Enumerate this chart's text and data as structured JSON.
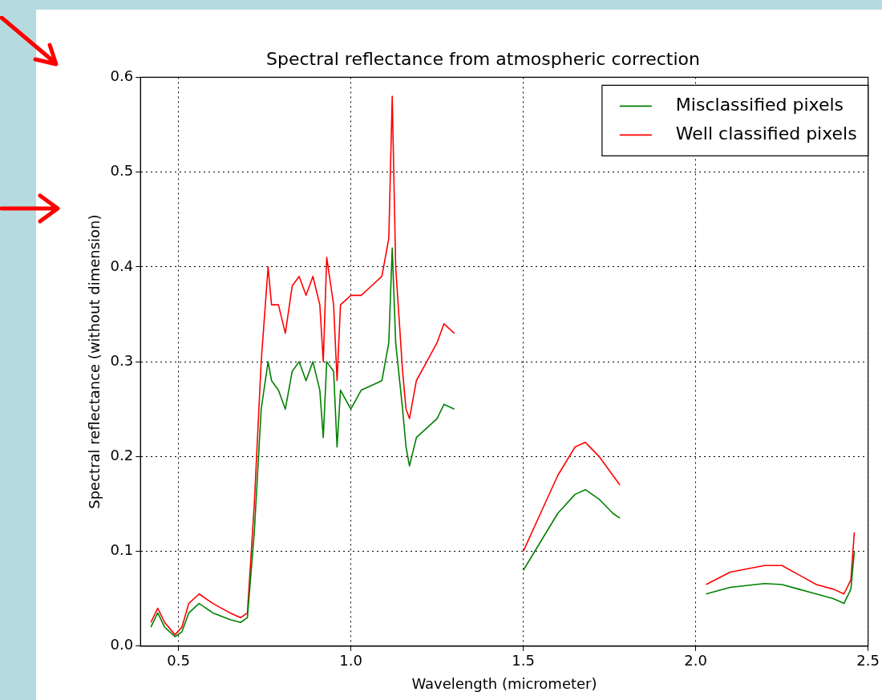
{
  "chart_data": {
    "type": "line",
    "title": "Spectral reflectance from atmospheric correction",
    "xlabel": "Wavelength (micrometer)",
    "ylabel": "Spectral reflectance (without dimension)",
    "x": [
      0.42,
      0.44,
      0.46,
      0.49,
      0.51,
      0.53,
      0.56,
      0.6,
      0.65,
      0.68,
      0.7,
      0.72,
      0.74,
      0.76,
      0.77,
      0.79,
      0.81,
      0.83,
      0.85,
      0.87,
      0.89,
      0.91,
      0.92,
      0.93,
      0.95,
      0.96,
      0.97,
      1.0,
      1.03,
      1.06,
      1.09,
      1.11,
      1.12,
      1.13,
      1.15,
      1.16,
      1.17,
      1.19,
      1.22,
      1.25,
      1.27,
      1.3,
      1.4,
      1.5,
      1.55,
      1.6,
      1.65,
      1.68,
      1.72,
      1.76,
      1.78,
      1.9,
      2.03,
      2.1,
      2.2,
      2.25,
      2.3,
      2.35,
      2.4,
      2.43,
      2.45,
      2.46
    ],
    "series": [
      {
        "name": "Misclassified pixels",
        "color": "#008000",
        "values": [
          0.02,
          0.035,
          0.02,
          0.01,
          0.015,
          0.035,
          0.045,
          0.035,
          0.028,
          0.025,
          0.03,
          0.12,
          0.25,
          0.3,
          0.28,
          0.27,
          0.25,
          0.29,
          0.3,
          0.28,
          0.3,
          0.27,
          0.22,
          0.3,
          0.29,
          0.21,
          0.27,
          0.25,
          0.27,
          0.275,
          0.28,
          0.32,
          0.42,
          0.32,
          0.25,
          0.21,
          0.19,
          0.22,
          0.23,
          0.24,
          0.255,
          0.25,
          null,
          0.08,
          0.11,
          0.14,
          0.16,
          0.165,
          0.155,
          0.14,
          0.135,
          null,
          0.055,
          0.062,
          0.066,
          0.065,
          0.06,
          0.055,
          0.05,
          0.045,
          0.06,
          0.1
        ]
      },
      {
        "name": "Well classified pixels",
        "color": "#ff0000",
        "values": [
          0.025,
          0.04,
          0.025,
          0.012,
          0.02,
          0.045,
          0.055,
          0.045,
          0.035,
          0.03,
          0.035,
          0.15,
          0.3,
          0.4,
          0.36,
          0.36,
          0.33,
          0.38,
          0.39,
          0.37,
          0.39,
          0.36,
          0.3,
          0.41,
          0.36,
          0.28,
          0.36,
          0.37,
          0.37,
          0.38,
          0.39,
          0.43,
          0.58,
          0.4,
          0.29,
          0.25,
          0.24,
          0.28,
          0.3,
          0.32,
          0.34,
          0.33,
          null,
          0.1,
          0.14,
          0.18,
          0.21,
          0.215,
          0.2,
          0.18,
          0.17,
          null,
          0.065,
          0.078,
          0.085,
          0.085,
          0.075,
          0.065,
          0.06,
          0.055,
          0.07,
          0.12
        ]
      }
    ],
    "xlim": [
      0.39,
      2.5
    ],
    "xticks": [
      0.5,
      {
        "value": 1,
        "label": "1.0"
      },
      1.5,
      {
        "value": 2,
        "label": "2.0"
      },
      2.5
    ],
    "ylim": [
      0,
      0.6
    ],
    "yticks": [
      {
        "value": 0,
        "label": "0.0"
      },
      0.1,
      0.2,
      0.3,
      0.4,
      0.5,
      0.6
    ],
    "grid": true,
    "legend": "top right",
    "marker": "none",
    "line_style": "solid"
  }
}
